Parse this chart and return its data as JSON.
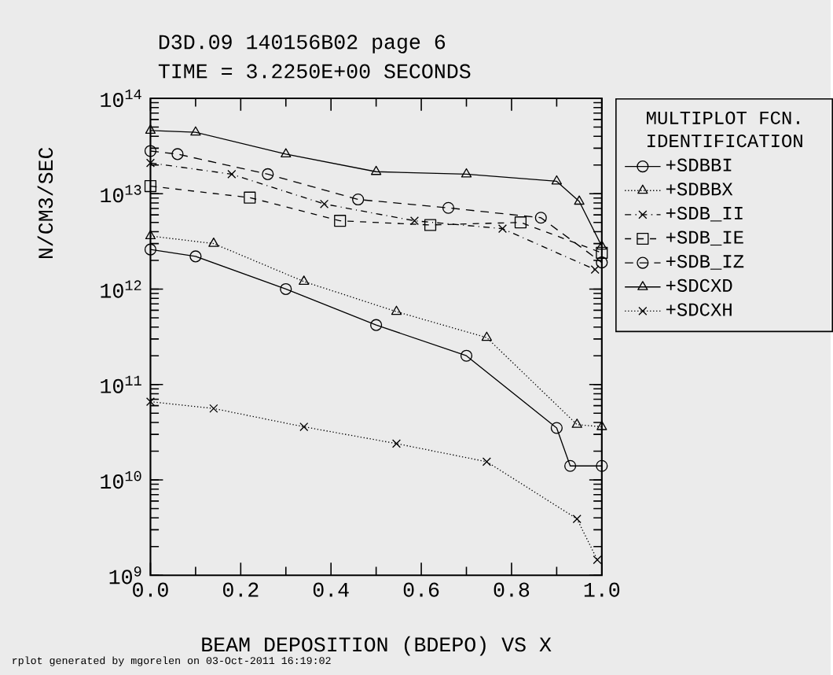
{
  "chart_data": {
    "type": "line",
    "title": "D3D.09 140156B02 page 6",
    "subtitle": "TIME = 3.2250E+00 SECONDS",
    "xlabel": "BEAM DEPOSITION (BDEPO) VS X",
    "ylabel": "N/CM3/SEC",
    "legend_title": "MULTIPLOT FCN. IDENTIFICATION",
    "legend": "right",
    "log": "y",
    "grid": false,
    "xlim": [
      0,
      1
    ],
    "ylim": [
      1000000000.0,
      100000000000000.0
    ],
    "xticks": [
      {
        "value": 0,
        "label": "0.0"
      },
      {
        "value": 0.2,
        "label": "0.2"
      },
      {
        "value": 0.4,
        "label": "0.4"
      },
      {
        "value": 0.6,
        "label": "0.6"
      },
      {
        "value": 0.8,
        "label": "0.8"
      },
      {
        "value": 1,
        "label": "1.0"
      }
    ],
    "yticks": [
      {
        "value": 1000000000.0,
        "label": "10$^{9}$"
      },
      {
        "value": 10000000000.0,
        "label": "10$^{10}$"
      },
      {
        "value": 100000000000.0,
        "label": "10$^{11}$"
      },
      {
        "value": 1000000000000.0,
        "label": "10$^{12}$"
      },
      {
        "value": 10000000000000.0,
        "label": "10$^{13}$"
      },
      {
        "value": 100000000000000.0,
        "label": "10$^{14}$"
      }
    ],
    "series": [
      {
        "name": "+SDBBI",
        "color": "#000000",
        "marker": "circle",
        "line_style": "solid",
        "x": [
          0,
          0.1,
          0.3,
          0.5,
          0.7,
          0.9,
          0.93,
          1.0
        ],
        "values": [
          2600000000000.0,
          2200000000000.0,
          1000000000000.0,
          420000000000.0,
          200000000000.0,
          35000000000.0,
          14000000000.0,
          14000000000.0
        ]
      },
      {
        "name": "+SDBBX",
        "color": "#000000",
        "marker": "triangle",
        "line_style": "dotted",
        "x": [
          0,
          0.14,
          0.34,
          0.545,
          0.745,
          0.945,
          1.0
        ],
        "values": [
          3600000000000.0,
          3000000000000.0,
          1200000000000.0,
          580000000000.0,
          310000000000.0,
          38000000000.0,
          36000000000.0
        ]
      },
      {
        "name": "+SDB_II",
        "color": "#000000",
        "marker": "cross",
        "line_style": "dashdotted",
        "x": [
          0,
          0.18,
          0.385,
          0.585,
          0.78,
          0.985
        ],
        "values": [
          21000000000000.0,
          16000000000000.0,
          7800000000000.0,
          5200000000000.0,
          4300000000000.0,
          1600000000000.0
        ]
      },
      {
        "name": "+SDB_IE",
        "color": "#000000",
        "marker": "square",
        "line_style": "dashed",
        "x": [
          0,
          0.22,
          0.42,
          0.62,
          0.82,
          1.0
        ],
        "values": [
          12000000000000.0,
          9100000000000.0,
          5200000000000.0,
          4700000000000.0,
          5000000000000.0,
          2400000000000.0
        ]
      },
      {
        "name": "+SDB_IZ",
        "color": "#000000",
        "marker": "circle",
        "line_style": "loosely dashed",
        "x": [
          0,
          0.06,
          0.26,
          0.46,
          0.66,
          0.865,
          1.0
        ],
        "values": [
          28000000000000.0,
          26000000000000.0,
          16000000000000.0,
          8700000000000.0,
          7100000000000.0,
          5600000000000.0,
          1900000000000.0
        ]
      },
      {
        "name": "+SDCXD",
        "color": "#000000",
        "marker": "triangle",
        "line_style": "solid",
        "x": [
          0,
          0.1,
          0.3,
          0.5,
          0.7,
          0.9,
          0.95,
          1.0
        ],
        "values": [
          46000000000000.0,
          44000000000000.0,
          26000000000000.0,
          17000000000000.0,
          16000000000000.0,
          13500000000000.0,
          8300000000000.0,
          2800000000000.0
        ]
      },
      {
        "name": "+SDCXH",
        "color": "#000000",
        "marker": "cross",
        "line_style": "dotted",
        "x": [
          0,
          0.14,
          0.34,
          0.545,
          0.745,
          0.945,
          0.99
        ],
        "values": [
          66000000000.0,
          56000000000.0,
          36000000000.0,
          24000000000.0,
          15500000000.0,
          3900000000.0,
          1450000000.0
        ]
      }
    ],
    "annotations": [
      "rplot generated by mgorelen on 03-Oct-2011 16:19:02"
    ]
  }
}
